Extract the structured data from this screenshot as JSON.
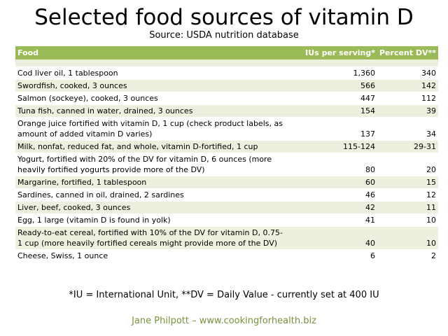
{
  "title": "Selected food sources of vitamin D",
  "subtitle": "Source: USDA nutrition database",
  "table": {
    "headers": [
      "Food",
      "IUs per serving*",
      "Percent DV**"
    ],
    "rows": [
      [
        "Cod liver oil, 1 tablespoon",
        "1,360",
        "340"
      ],
      [
        "Swordfish, cooked, 3 ounces",
        "566",
        "142"
      ],
      [
        "Salmon (sockeye), cooked, 3 ounces",
        "447",
        "112"
      ],
      [
        "Tuna fish, canned in water, drained, 3 ounces",
        "154",
        "39"
      ],
      [
        "Orange juice fortified with vitamin D, 1 cup (check product labels, as amount of added vitamin D varies)",
        "137",
        "34"
      ],
      [
        "Milk, nonfat, reduced fat, and whole, vitamin D-fortified, 1 cup",
        "115-124",
        "29-31"
      ],
      [
        "Yogurt, fortified with 20% of the DV for vitamin D, 6 ounces (more heavily fortified yogurts provide more of the DV)",
        "80",
        "20"
      ],
      [
        "Margarine, fortified, 1 tablespoon",
        "60",
        "15"
      ],
      [
        "Sardines, canned in oil, drained, 2 sardines",
        "46",
        "12"
      ],
      [
        "Liver, beef, cooked, 3 ounces",
        "42",
        "11"
      ],
      [
        "Egg, 1 large (vitamin D is found in yolk)",
        "41",
        "10"
      ],
      [
        "Ready-to-eat cereal, fortified with 10% of the DV for vitamin D, 0.75-1 cup (more heavily fortified cereals might provide more of the DV)",
        "40",
        "10"
      ],
      [
        "Cheese, Swiss, 1 ounce",
        "6",
        "2"
      ]
    ]
  },
  "footnote": "*IU = International Unit, **DV = Daily Value - currently set at 400 IU",
  "credit": "Jane Philpott – www.cookingforhealth.biz",
  "colors": {
    "header_bg": "#9bbb59",
    "band_bg": "#ebf1de",
    "credit_text": "#76923c"
  }
}
